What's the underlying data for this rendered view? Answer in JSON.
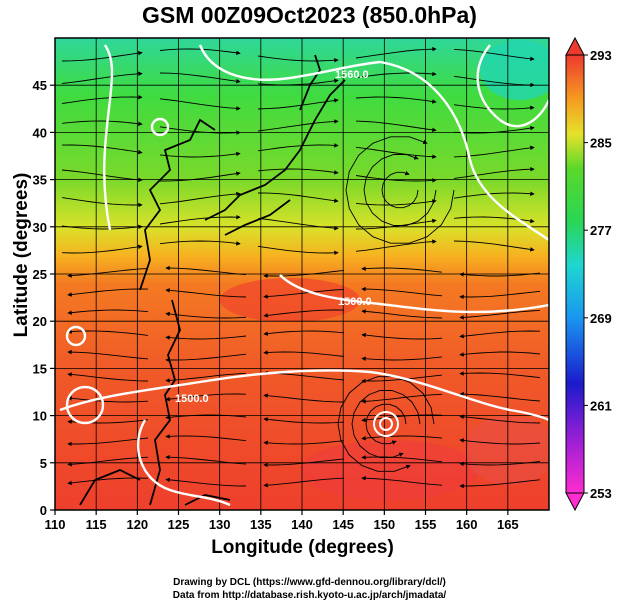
{
  "title": "GSM 00Z09Oct2023 (850.0hPa)",
  "x_axis": {
    "label": "Longitude (degrees)",
    "ticks": [
      "110",
      "115",
      "120",
      "125",
      "130",
      "135",
      "140",
      "145",
      "150",
      "155",
      "160",
      "165"
    ],
    "range": [
      110,
      170
    ]
  },
  "y_axis": {
    "label": "Latitude  (degrees)",
    "ticks": [
      "0",
      "5",
      "10",
      "15",
      "20",
      "25",
      "30",
      "35",
      "40",
      "45"
    ],
    "range": [
      0,
      50
    ]
  },
  "colorbar": {
    "labels": [
      "293",
      "285",
      "277",
      "269",
      "261",
      "253"
    ],
    "range": [
      253,
      293
    ]
  },
  "contour_labels": [
    "1560.0",
    "1500.0",
    "1500.0"
  ],
  "credits": [
    "Drawing by DCL (https://www.gfd-dennou.org/library/dcl/)",
    "Data from http://database.rish.kyoto-u.ac.jp/arch/jmadata/"
  ],
  "colors": {
    "cold": "#ff00ff",
    "warm": "#ff4a3a",
    "contour": "#ffffff",
    "streamline": "#000000"
  }
}
